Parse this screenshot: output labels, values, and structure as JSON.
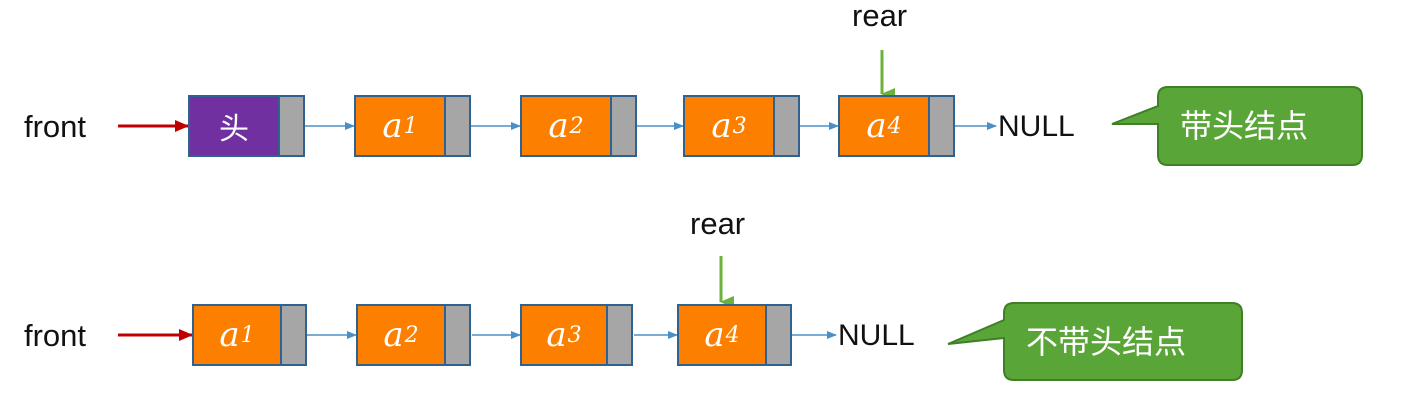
{
  "diagram_1": {
    "front_label": "front",
    "head_label": "头",
    "nodes": [
      {
        "base": "a",
        "sub": "1"
      },
      {
        "base": "a",
        "sub": "2"
      },
      {
        "base": "a",
        "sub": "3"
      },
      {
        "base": "a",
        "sub": "4"
      }
    ],
    "rear_label": "rear",
    "null_label": "NULL",
    "callout": "带头结点"
  },
  "diagram_2": {
    "front_label": "front",
    "nodes": [
      {
        "base": "a",
        "sub": "1"
      },
      {
        "base": "a",
        "sub": "2"
      },
      {
        "base": "a",
        "sub": "3"
      },
      {
        "base": "a",
        "sub": "4"
      }
    ],
    "rear_label": "rear",
    "null_label": "NULL",
    "callout": "不带头结点"
  },
  "colors": {
    "front_arrow": "#c00000",
    "rear_arrow": "#6bb13a",
    "link_arrow": "#4a90c8",
    "node_fill": "#fd7f00",
    "head_fill": "#7030a0",
    "pointer_fill": "#a6a6a6",
    "callout_fill": "#5aa537"
  }
}
